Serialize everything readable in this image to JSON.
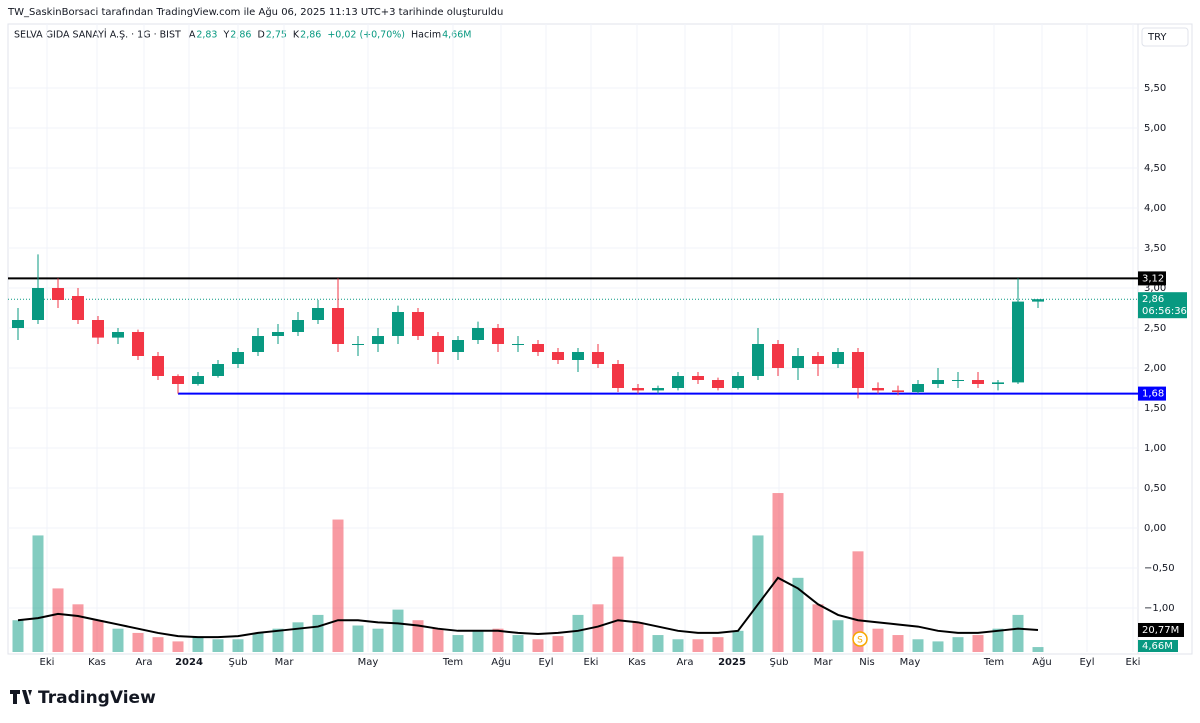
{
  "header": {
    "attribution": "TW_SaskinBorsaci tarafından TradingView.com ile Ağu 06, 2025 11:13 UTC+3 tarihinde oluşturuldu"
  },
  "legend": {
    "symbol": "SELVA GIDA SANAYİ A.Ş. · 1G · BIST",
    "fields": [
      {
        "key": "A",
        "value": "2,83"
      },
      {
        "key": "Y",
        "value": "2,86"
      },
      {
        "key": "D",
        "value": "2,75"
      },
      {
        "key": "K",
        "value": "2,86"
      },
      {
        "key": "",
        "value": "+0,02 (+0,70%)"
      },
      {
        "key": "Hacim",
        "value": "4,66M"
      }
    ]
  },
  "currency": "TRY",
  "brand": "TradingView",
  "chart_data": {
    "type": "candlestick",
    "up_color": "#089981",
    "down_color": "#f23645",
    "grid": true,
    "xlim": [
      -0.5,
      56
    ],
    "xticks": [
      {
        "value": 1.45,
        "label": "Eki"
      },
      {
        "value": 3.95,
        "label": "Kas"
      },
      {
        "value": 6.3,
        "label": "Ara"
      },
      {
        "value": 8.55,
        "label": "2024"
      },
      {
        "value": 11,
        "label": "Şub"
      },
      {
        "value": 13.3,
        "label": "Mar"
      },
      {
        "value": 17.5,
        "label": "May"
      },
      {
        "value": 21.75,
        "label": "Tem"
      },
      {
        "value": 24.15,
        "label": "Ağu"
      },
      {
        "value": 26.4,
        "label": "Eyl"
      },
      {
        "value": 28.65,
        "label": "Eki"
      },
      {
        "value": 30.95,
        "label": "Kas"
      },
      {
        "value": 33.35,
        "label": "Ara"
      },
      {
        "value": 35.7,
        "label": "2025"
      },
      {
        "value": 38.05,
        "label": "Şub"
      },
      {
        "value": 40.25,
        "label": "Mar"
      },
      {
        "value": 42.45,
        "label": "Nis"
      },
      {
        "value": 44.6,
        "label": "May"
      },
      {
        "value": 48.8,
        "label": "Tem"
      },
      {
        "value": 51.2,
        "label": "Ağu"
      },
      {
        "value": 53.45,
        "label": "Eyl"
      },
      {
        "value": 55.75,
        "label": "Eki"
      }
    ],
    "ylim": [
      -1.55,
      6.0
    ],
    "yticks": [
      {
        "value": 5.5,
        "label": "5,50"
      },
      {
        "value": 5,
        "label": "5,00"
      },
      {
        "value": 4.5,
        "label": "4,50"
      },
      {
        "value": 4,
        "label": "4,00"
      },
      {
        "value": 3.5,
        "label": "3,50"
      },
      {
        "value": 3,
        "label": "3,00"
      },
      {
        "value": 2.5,
        "label": "2,50"
      },
      {
        "value": 2,
        "label": "2,00"
      },
      {
        "value": 1.5,
        "label": "1,50"
      },
      {
        "value": 1,
        "label": "1,00"
      },
      {
        "value": 0.5,
        "label": "0,50"
      },
      {
        "value": 0,
        "label": "0,00"
      },
      {
        "value": -0.5,
        "label": "−0,50"
      },
      {
        "value": -1,
        "label": "−1,00"
      }
    ],
    "open": [
      2.5,
      2.6,
      3.0,
      2.9,
      2.6,
      2.38,
      2.45,
      2.15,
      1.9,
      1.8,
      1.9,
      2.05,
      2.2,
      2.4,
      2.45,
      2.6,
      2.75,
      2.3,
      2.3,
      2.4,
      2.7,
      2.4,
      2.2,
      2.35,
      2.5,
      2.3,
      2.3,
      2.2,
      2.1,
      2.2,
      2.05,
      1.75,
      1.72,
      1.75,
      1.9,
      1.85,
      1.75,
      1.9,
      2.3,
      2.0,
      2.15,
      2.05,
      2.2,
      1.75,
      1.72,
      1.7,
      1.8,
      1.85,
      1.85,
      1.8,
      1.82,
      2.83
    ],
    "high": [
      2.75,
      3.42,
      3.12,
      3.0,
      2.65,
      2.5,
      2.48,
      2.2,
      1.92,
      1.95,
      2.1,
      2.25,
      2.5,
      2.55,
      2.7,
      2.85,
      3.12,
      2.4,
      2.5,
      2.78,
      2.75,
      2.45,
      2.4,
      2.58,
      2.55,
      2.4,
      2.35,
      2.25,
      2.25,
      2.3,
      2.1,
      1.8,
      1.78,
      1.95,
      1.95,
      1.88,
      1.95,
      2.5,
      2.35,
      2.25,
      2.2,
      2.25,
      2.25,
      1.82,
      1.78,
      1.85,
      2.0,
      1.95,
      1.95,
      1.85,
      3.12,
      2.86
    ],
    "low": [
      2.35,
      2.55,
      2.75,
      2.55,
      2.3,
      2.3,
      2.1,
      1.85,
      1.68,
      1.78,
      1.88,
      2.0,
      2.15,
      2.3,
      2.4,
      2.55,
      2.2,
      2.15,
      2.2,
      2.3,
      2.35,
      2.05,
      2.1,
      2.3,
      2.2,
      2.2,
      2.15,
      2.05,
      1.95,
      2.0,
      1.7,
      1.68,
      1.68,
      1.72,
      1.8,
      1.72,
      1.73,
      1.85,
      1.9,
      1.85,
      1.9,
      2.0,
      1.62,
      1.68,
      1.66,
      1.68,
      1.75,
      1.75,
      1.75,
      1.72,
      1.8,
      2.75
    ],
    "close": [
      2.6,
      3.0,
      2.85,
      2.6,
      2.38,
      2.45,
      2.15,
      1.9,
      1.8,
      1.9,
      2.05,
      2.2,
      2.4,
      2.45,
      2.6,
      2.75,
      2.3,
      2.3,
      2.4,
      2.7,
      2.4,
      2.2,
      2.35,
      2.5,
      2.3,
      2.3,
      2.2,
      2.1,
      2.2,
      2.05,
      1.75,
      1.72,
      1.75,
      1.9,
      1.85,
      1.75,
      1.9,
      2.3,
      2.0,
      2.15,
      2.05,
      2.2,
      1.75,
      1.72,
      1.7,
      1.8,
      1.85,
      1.85,
      1.8,
      1.82,
      2.83,
      2.86
    ],
    "volume_lim": [
      0,
      570
    ],
    "volume": [
      30,
      110,
      60,
      45,
      30,
      22,
      18,
      14,
      10,
      14,
      12,
      12,
      18,
      22,
      28,
      35,
      125,
      25,
      22,
      40,
      30,
      22,
      16,
      20,
      22,
      16,
      12,
      15,
      35,
      45,
      90,
      28,
      16,
      12,
      12,
      14,
      20,
      110,
      150,
      70,
      45,
      30,
      95,
      22,
      16,
      12,
      10,
      14,
      16,
      22,
      35,
      4.66
    ],
    "volume_ma": [
      30,
      32,
      36,
      34,
      30,
      26,
      22,
      18,
      15,
      14,
      14,
      15,
      18,
      20,
      22,
      24,
      30,
      30,
      28,
      27,
      25,
      22,
      20,
      20,
      20,
      18,
      17,
      18,
      20,
      24,
      30,
      28,
      24,
      20,
      18,
      18,
      20,
      45,
      70,
      60,
      45,
      35,
      30,
      28,
      26,
      24,
      20,
      18,
      18,
      20,
      22,
      20.77
    ],
    "volume_ma_color": "#000000",
    "levels": [
      {
        "value": 3.12,
        "label": "3,12",
        "color": "#000000",
        "from": -0.5
      },
      {
        "value": 1.68,
        "label": "1,68",
        "color": "#0000ff",
        "from": 8
      }
    ],
    "last_price": {
      "value": 2.86,
      "label": "2,86",
      "countdown": "06:56:36"
    },
    "volume_labels": {
      "ma": "20,77M",
      "volume": "4,66M"
    },
    "event": {
      "x": 42.1,
      "label": "S"
    }
  }
}
